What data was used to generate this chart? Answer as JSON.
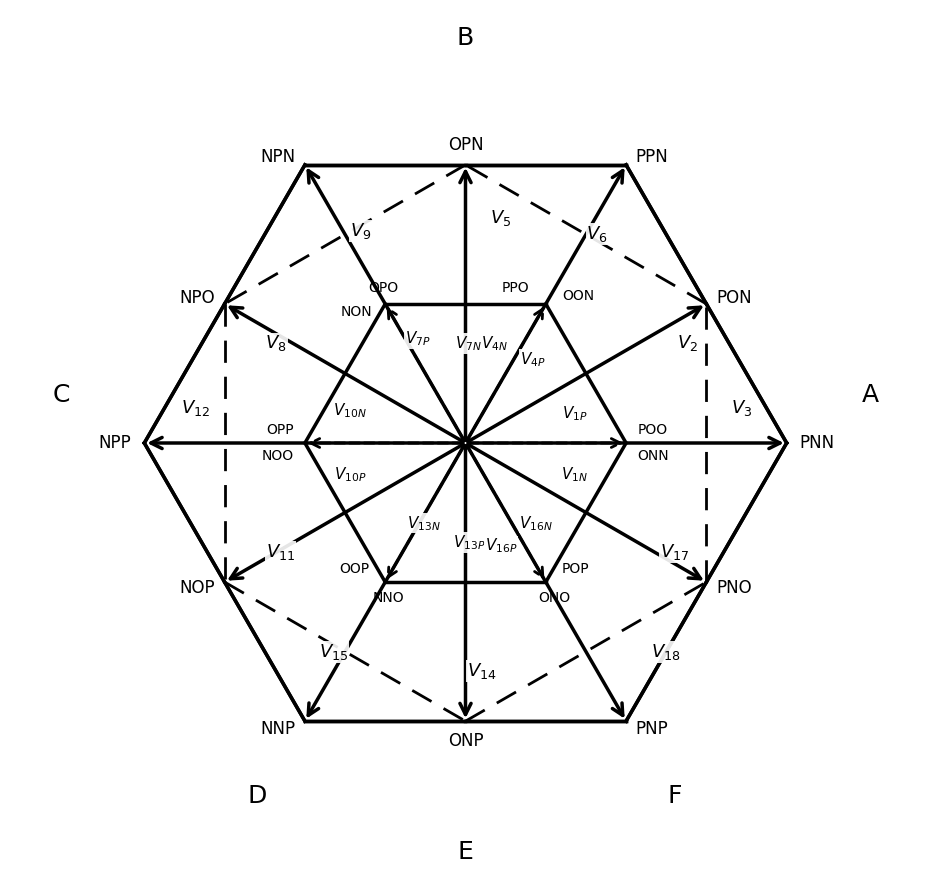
{
  "figsize": [
    9.31,
    8.86
  ],
  "dpi": 100,
  "lw_thick": 2.5,
  "lw_dashed": 2.0,
  "fs_vertex": 12,
  "fs_vec": 13,
  "fs_sector": 18,
  "arrow_ms": 18,
  "arrow_ms_small": 15,
  "xlim": [
    -2.8,
    2.8
  ],
  "ylim": [
    -2.75,
    2.75
  ]
}
